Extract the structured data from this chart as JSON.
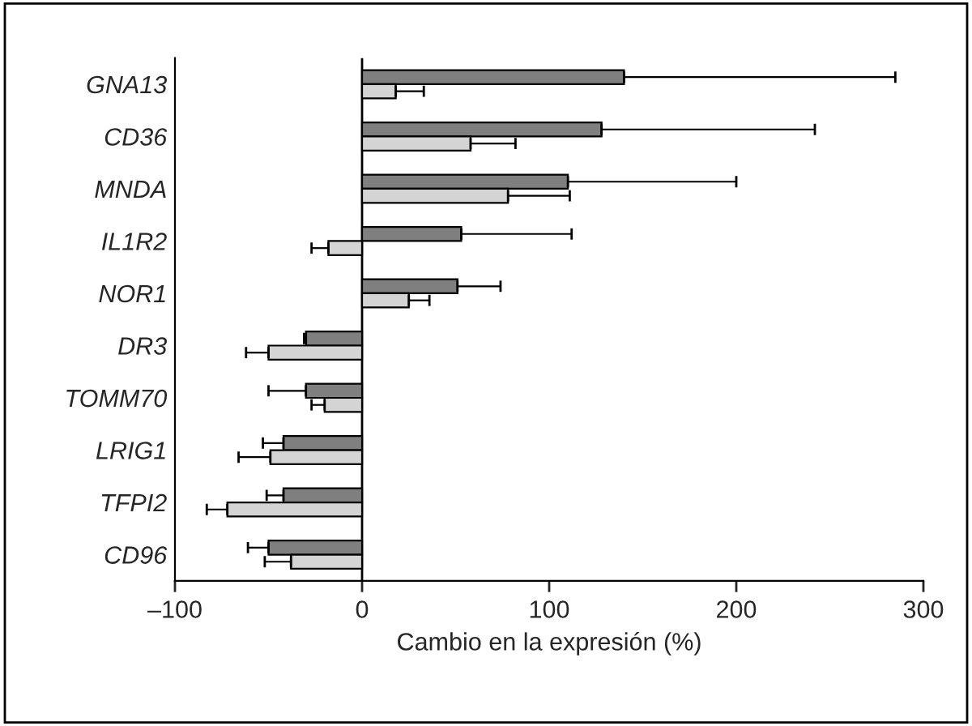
{
  "chart_data": {
    "type": "bar",
    "orientation": "horizontal",
    "xlabel": "Cambio en la expresión (%)",
    "categories": [
      "GNA13",
      "CD36",
      "MNDA",
      "IL1R2",
      "NOR1",
      "DR3",
      "TOMM70",
      "LRIG1",
      "TFPI2",
      "CD96"
    ],
    "series": [
      {
        "color": "#7f7f7f",
        "values": [
          140,
          128,
          110,
          53,
          51,
          -30,
          -30,
          -42,
          -42,
          -50
        ],
        "errors": [
          [
            140,
            285
          ],
          [
            128,
            242
          ],
          [
            110,
            200
          ],
          [
            53,
            112
          ],
          [
            51,
            74
          ],
          [
            -31,
            -30
          ],
          [
            -50,
            -30
          ],
          [
            -53,
            -42
          ],
          [
            -51,
            -42
          ],
          [
            -61,
            -50
          ]
        ]
      },
      {
        "color": "#d4d4d4",
        "values": [
          18,
          58,
          78,
          -18,
          25,
          -50,
          -20,
          -49,
          -72,
          -38
        ],
        "errors": [
          [
            18,
            33
          ],
          [
            58,
            82
          ],
          [
            78,
            111
          ],
          [
            -27,
            -18
          ],
          [
            25,
            36
          ],
          [
            -62,
            -50
          ],
          [
            -27,
            -20
          ],
          [
            -66,
            -49
          ],
          [
            -83,
            -72
          ],
          [
            -52,
            -38
          ]
        ]
      }
    ],
    "xlim": [
      -100,
      300
    ],
    "xticks": [
      {
        "value": -100,
        "label": "–100"
      },
      0,
      100,
      200,
      300
    ],
    "ref_lines": [
      {
        "axis": "x",
        "value": 0,
        "color": "#000000"
      }
    ],
    "grid": false,
    "legend": false
  }
}
